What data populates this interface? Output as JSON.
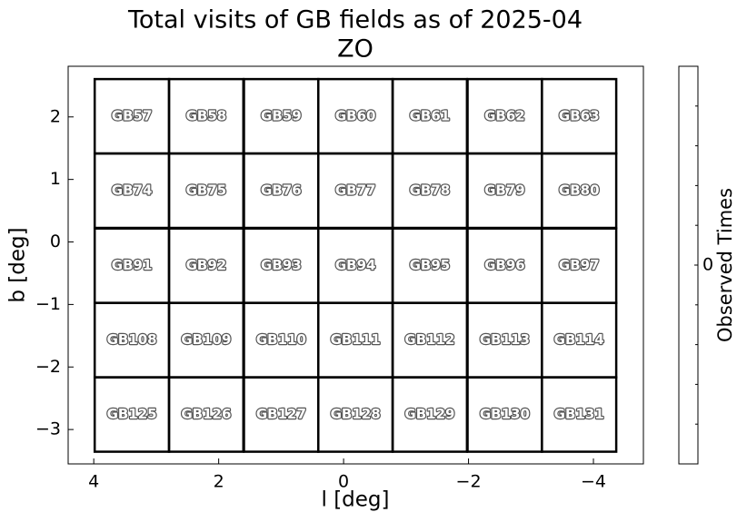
{
  "chart_data": {
    "type": "fields",
    "title": "Total visits of GB fields as of 2025-04",
    "subtitle": "ZO",
    "xlabel": "l [deg]",
    "ylabel": "b [deg]",
    "xlim": [
      4.41,
      -4.8
    ],
    "ylim": [
      -3.55,
      2.81
    ],
    "xticks": [
      4,
      2,
      0,
      {
        "value": -2,
        "label": "−2"
      },
      {
        "value": -4,
        "label": "−4"
      }
    ],
    "yticks": [
      {
        "value": -3,
        "label": "−3"
      },
      {
        "value": -2,
        "label": "−2"
      },
      {
        "value": -1,
        "label": "−1"
      },
      0,
      1,
      2
    ],
    "field_size": 1.19,
    "fields": [
      {
        "name": "GB57",
        "l": 3.39,
        "b": 2.01
      },
      {
        "name": "GB58",
        "l": 2.2,
        "b": 2.01
      },
      {
        "name": "GB59",
        "l": 1.0,
        "b": 2.01
      },
      {
        "name": "GB60",
        "l": -0.19,
        "b": 2.01
      },
      {
        "name": "GB61",
        "l": -1.38,
        "b": 2.01
      },
      {
        "name": "GB62",
        "l": -2.58,
        "b": 2.01
      },
      {
        "name": "GB63",
        "l": -3.77,
        "b": 2.01
      },
      {
        "name": "GB74",
        "l": 3.39,
        "b": 0.82
      },
      {
        "name": "GB75",
        "l": 2.2,
        "b": 0.82
      },
      {
        "name": "GB76",
        "l": 1.0,
        "b": 0.82
      },
      {
        "name": "GB77",
        "l": -0.19,
        "b": 0.82
      },
      {
        "name": "GB78",
        "l": -1.38,
        "b": 0.82
      },
      {
        "name": "GB79",
        "l": -2.58,
        "b": 0.82
      },
      {
        "name": "GB80",
        "l": -3.77,
        "b": 0.82
      },
      {
        "name": "GB91",
        "l": 3.39,
        "b": -0.38
      },
      {
        "name": "GB92",
        "l": 2.2,
        "b": -0.38
      },
      {
        "name": "GB93",
        "l": 1.0,
        "b": -0.38
      },
      {
        "name": "GB94",
        "l": -0.19,
        "b": -0.38
      },
      {
        "name": "GB95",
        "l": -1.38,
        "b": -0.38
      },
      {
        "name": "GB96",
        "l": -2.58,
        "b": -0.38
      },
      {
        "name": "GB97",
        "l": -3.77,
        "b": -0.38
      },
      {
        "name": "GB108",
        "l": 3.39,
        "b": -1.57
      },
      {
        "name": "GB109",
        "l": 2.2,
        "b": -1.57
      },
      {
        "name": "GB110",
        "l": 1.0,
        "b": -1.57
      },
      {
        "name": "GB111",
        "l": -0.19,
        "b": -1.57
      },
      {
        "name": "GB112",
        "l": -1.38,
        "b": -1.57
      },
      {
        "name": "GB113",
        "l": -2.58,
        "b": -1.57
      },
      {
        "name": "GB114",
        "l": -3.77,
        "b": -1.57
      },
      {
        "name": "GB125",
        "l": 3.39,
        "b": -2.76
      },
      {
        "name": "GB126",
        "l": 2.2,
        "b": -2.76
      },
      {
        "name": "GB127",
        "l": 1.0,
        "b": -2.76
      },
      {
        "name": "GB128",
        "l": -0.19,
        "b": -2.76
      },
      {
        "name": "GB129",
        "l": -1.38,
        "b": -2.76
      },
      {
        "name": "GB130",
        "l": -2.58,
        "b": -2.76
      },
      {
        "name": "GB131",
        "l": -3.77,
        "b": -2.76
      }
    ],
    "colorbar": {
      "label": "Observed Times",
      "ticks": [
        0
      ]
    }
  }
}
